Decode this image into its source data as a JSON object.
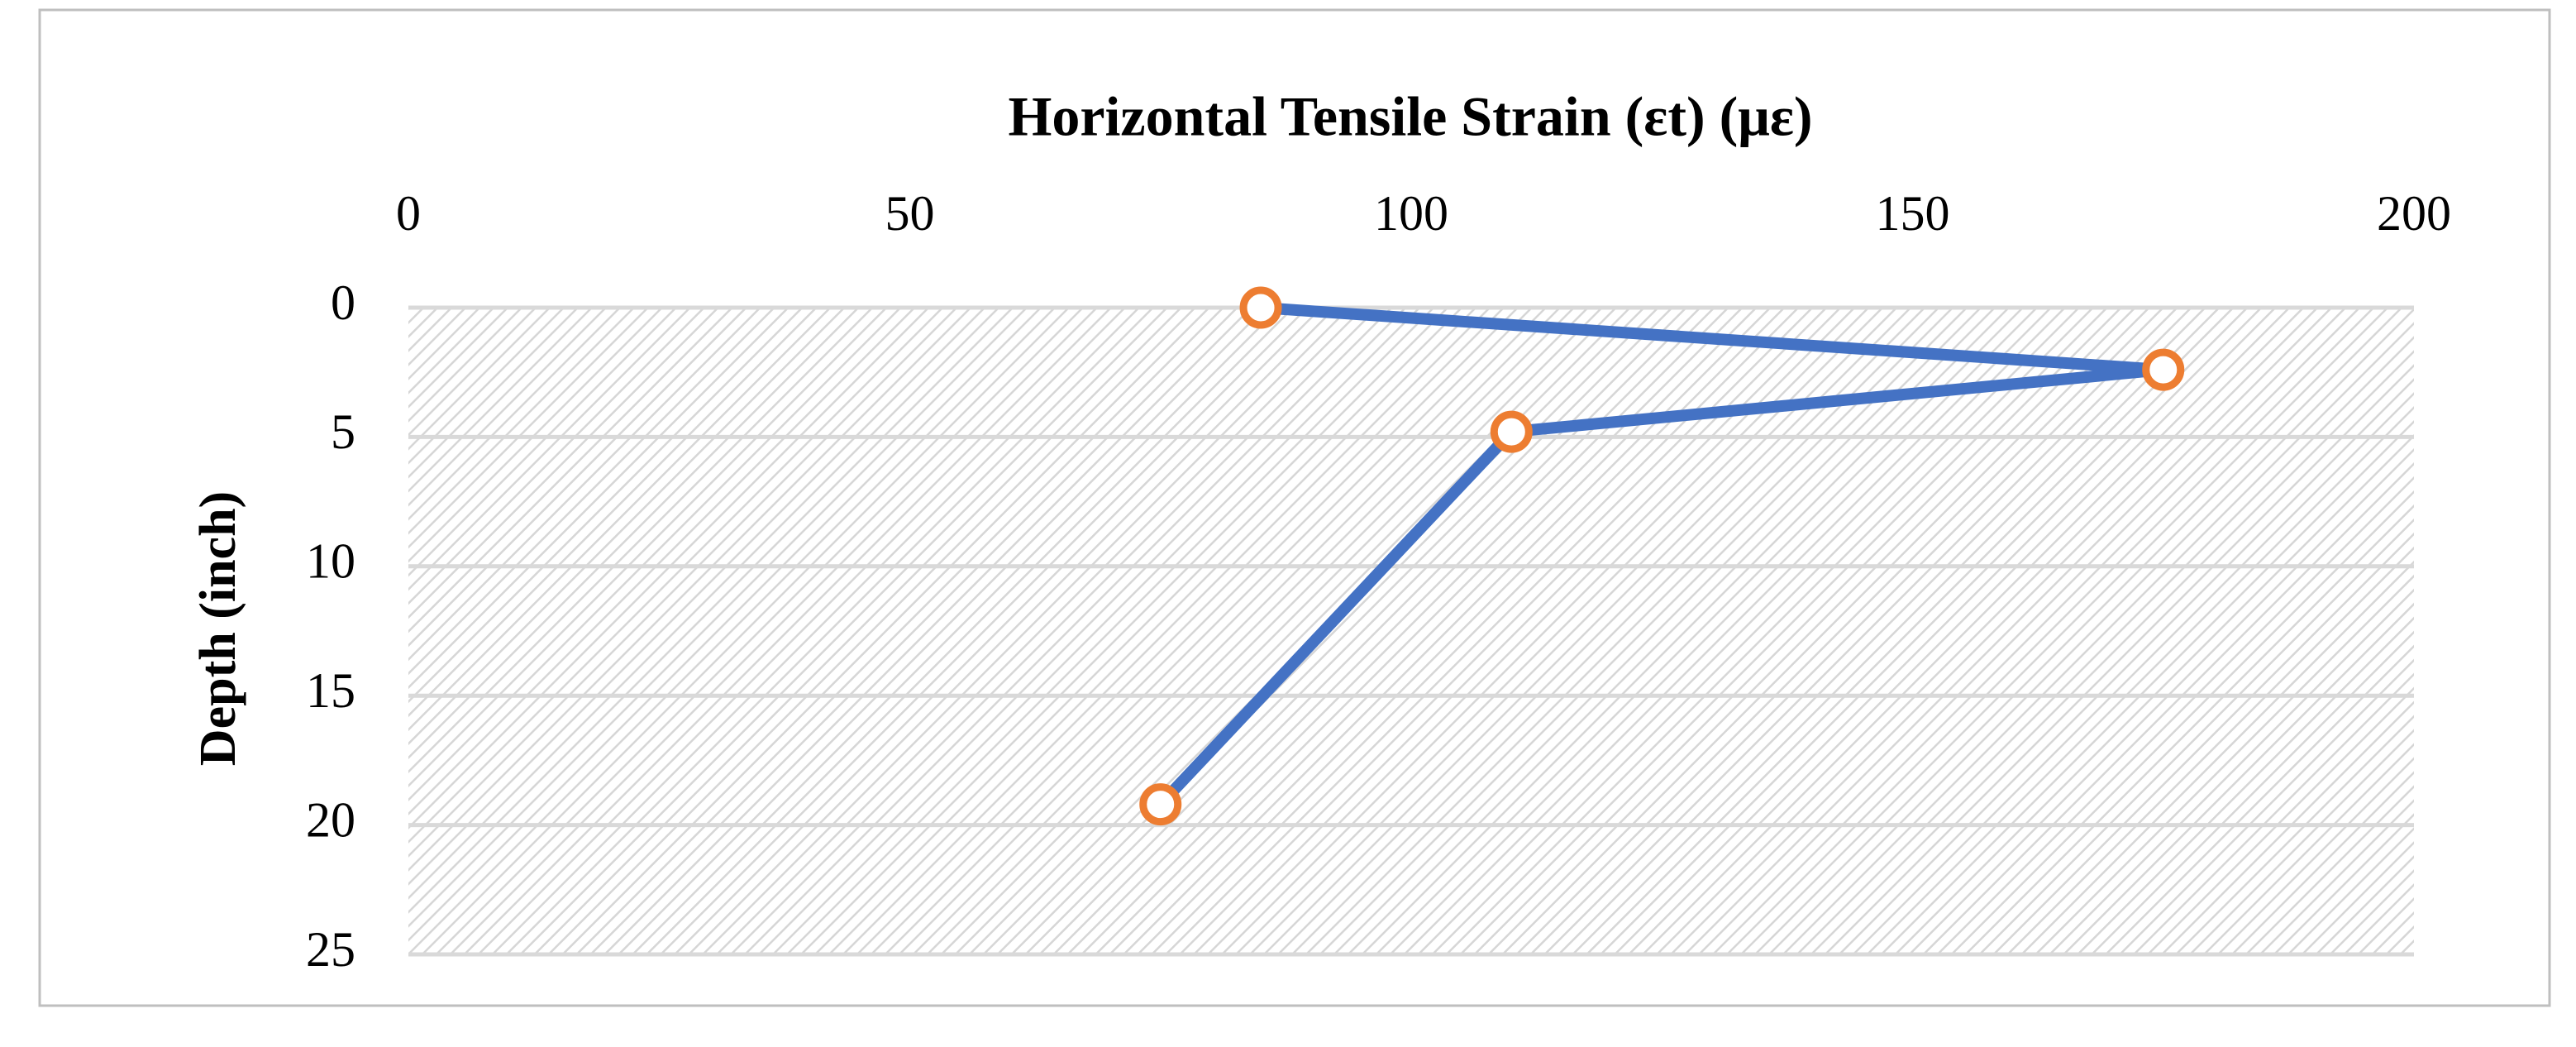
{
  "chart_data": {
    "type": "line",
    "title": "Horizontal Tensile Strain (εt) (με)",
    "y_label": "Depth (inch)",
    "x": [
      85,
      175,
      110,
      75
    ],
    "values": [
      0,
      2.4,
      4.8,
      19.2
    ],
    "color": "#4472c4",
    "marker_color": "#ed7d31",
    "xlim": [
      0,
      200
    ],
    "xticks": [
      0,
      50,
      100,
      150,
      200
    ],
    "ylim": [
      0,
      25
    ],
    "yticks": [
      0,
      5,
      10,
      15,
      20,
      25
    ],
    "y_inverted": true,
    "x_axis_position": "top",
    "grid": true
  }
}
